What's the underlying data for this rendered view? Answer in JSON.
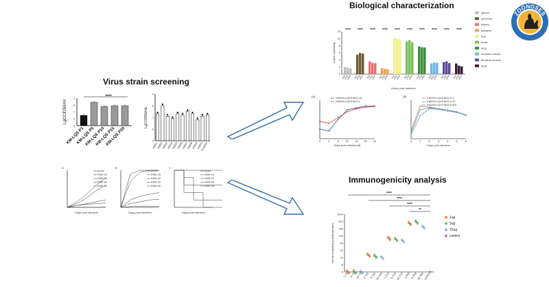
{
  "titles": {
    "virus": "Virus strain screening",
    "bio": "Biological characterization",
    "immuno": "Immunogenicity analysis"
  },
  "logo": {
    "text": "ZOONOSES"
  },
  "virus_bar": {
    "ylabel": "LgCCID50/ml",
    "significance": "****",
    "yticks": [
      "9",
      "8",
      "7",
      "6",
      "5"
    ],
    "categories": [
      "KM-LQS P1",
      "KM-LQS P5",
      "KM-LQS P10",
      "KM-LQS P15",
      "KM-LQS P20"
    ],
    "values": [
      6.5,
      8.4,
      7.8,
      7.9,
      7.9
    ],
    "colors": [
      "#111111",
      "#9a9a9a",
      "#9a9a9a",
      "#9a9a9a",
      "#9a9a9a"
    ]
  },
  "virus_dot": {
    "ylabel": "LgCCID50/mL",
    "yticks": [
      "9",
      "8",
      "7",
      "6",
      "5"
    ],
    "categories": [
      "KM01",
      "KM02",
      "KM03",
      "KM04",
      "KM05",
      "KM06",
      "KM07",
      "KM08",
      "KM09",
      "KM10",
      "Positive"
    ],
    "values": [
      7.3,
      8.0,
      7.1,
      6.9,
      7.3,
      7.2,
      7.5,
      7.3,
      6.8,
      7.1,
      7.2
    ]
  },
  "virus_curves": {
    "panels": [
      "A",
      "B",
      "C"
    ],
    "xlabel": "Days post infection",
    "legendA": [
      "mock",
      "KM0-10",
      "KM0-20",
      "KM0-30",
      "KM0-40"
    ],
    "legendB": [
      "mock",
      "KM0-10",
      "KM0-20",
      "KM0-30",
      "KM0-40"
    ],
    "legendC": [
      "mock",
      "KM0-10",
      "KM0-20",
      "KM0-30",
      "KM0-40"
    ]
  },
  "bio_bar": {
    "ylabel": "Log10 copies/mg",
    "xlabel": "Hours post-infection",
    "significance": [
      "****",
      "****",
      "****",
      "****",
      "****",
      "****",
      "****",
      "****",
      "****",
      "****"
    ],
    "legend": [
      {
        "name": "spleen",
        "color": "#bdbdbd"
      },
      {
        "name": "pancreas",
        "color": "#6d5f3a"
      },
      {
        "name": "kidney",
        "color": "#e57373"
      },
      {
        "name": "intestine",
        "color": "#f0a050"
      },
      {
        "name": "liver",
        "color": "#f5f08a"
      },
      {
        "name": "heart",
        "color": "#7bbf5a"
      },
      {
        "name": "lung",
        "color": "#3c8d3c"
      },
      {
        "name": "forelimb muscle",
        "color": "#6fb6e6"
      },
      {
        "name": "hindlimb muscle",
        "color": "#5b4a9c"
      },
      {
        "name": "brain",
        "color": "#3a1f3a"
      }
    ],
    "groups": [
      [
        2.0,
        1.8,
        1.6
      ],
      [
        5.5,
        6.0,
        5.8
      ],
      [
        3.6,
        3.2,
        3.1
      ],
      [
        1.7,
        1.5,
        1.4
      ],
      [
        10.2,
        10.0,
        9.8
      ],
      [
        9.2,
        9.6,
        9.0
      ],
      [
        7.8,
        7.6,
        7.5
      ],
      [
        3.0,
        3.3,
        3.2
      ],
      [
        3.4,
        3.6,
        3.1
      ],
      [
        3.0,
        2.4,
        2.2
      ]
    ],
    "yticks": [
      "12",
      "10",
      "8",
      "6",
      "4",
      "2",
      "0"
    ]
  },
  "growth": {
    "panelA": "(A)",
    "panelB": "(B)",
    "legendA": [
      "KM299-LQ15 MOI-10",
      "KM299-LQ15 MOI-1"
    ],
    "legendB": [
      "KM299-LQ15 MOI-0.1",
      "KM299-LQ15 MOI-0.01",
      "KM299-LQ15 MOI-0.001"
    ],
    "xlabelA": "Days post infection(d)",
    "xlabelB": "Days post infection",
    "xticksA": [
      "0",
      "4",
      "8",
      "12",
      "16",
      "20",
      "24"
    ],
    "xticksB": [
      "0",
      "1",
      "2",
      "3",
      "4",
      "5",
      "6"
    ]
  },
  "immuno": {
    "ylabel": "Serum neutralizing antibody titers",
    "yticks": [
      "1024",
      "512",
      "256",
      "128",
      "64",
      "32",
      "16",
      "8",
      "4"
    ],
    "sig": [
      "****",
      "****",
      "****",
      "**"
    ],
    "legend": [
      {
        "name": "1ug",
        "color": "#f08a4b"
      },
      {
        "name": "5ug",
        "color": "#7ec16b"
      },
      {
        "name": "10ug",
        "color": "#7fb7e6"
      },
      {
        "name": "control",
        "color": "#d86fb0"
      }
    ],
    "xticks": [
      "1-7d",
      "5-7d",
      "10-7d",
      "1-14d",
      "5-14d",
      "10-14d",
      "1-21d",
      "5-21d",
      "10-21d",
      "1-28d",
      "5-28d",
      "10-28d",
      "control"
    ],
    "values": [
      4,
      4,
      4,
      20,
      18,
      16,
      100,
      90,
      80,
      420,
      480,
      300,
      4
    ]
  }
}
